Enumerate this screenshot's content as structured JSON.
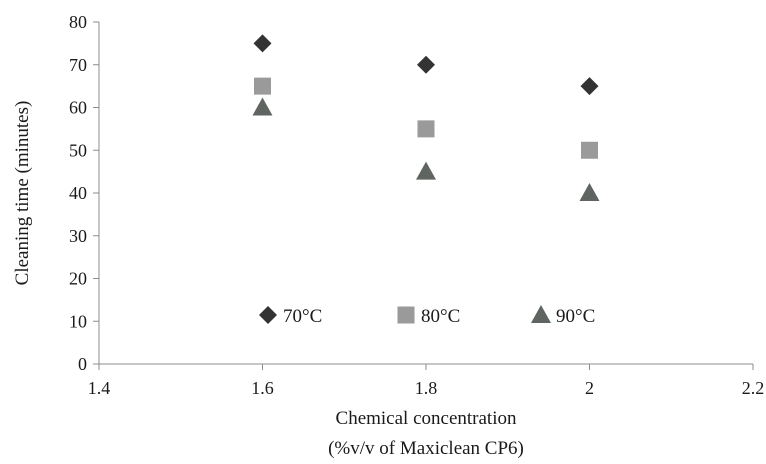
{
  "chart_data": {
    "type": "scatter",
    "title": "",
    "xlabel_lines": [
      "Chemical concentration",
      "(%v/v of Maxiclean CP6)"
    ],
    "ylabel": "Cleaning time (minutes)",
    "xlim": [
      1.4,
      2.2
    ],
    "ylim": [
      0,
      80
    ],
    "xticks": [
      "1.4",
      "1.6",
      "1.8",
      "2",
      "2.2"
    ],
    "yticks": [
      "0",
      "10",
      "20",
      "30",
      "40",
      "50",
      "60",
      "70",
      "80"
    ],
    "grid": false,
    "legend_position": "inside-bottom",
    "series": [
      {
        "name": "70°C",
        "marker": "diamond",
        "color": "#333333",
        "x": [
          1.6,
          1.8,
          2.0
        ],
        "y": [
          75,
          70,
          65
        ]
      },
      {
        "name": "80°C",
        "marker": "square",
        "color": "#9a9a9a",
        "x": [
          1.6,
          1.8,
          2.0
        ],
        "y": [
          65,
          55,
          50
        ]
      },
      {
        "name": "90°C",
        "marker": "triangle",
        "color": "#5f6661",
        "x": [
          1.6,
          1.8,
          2.0
        ],
        "y": [
          60,
          45,
          40
        ]
      }
    ]
  }
}
